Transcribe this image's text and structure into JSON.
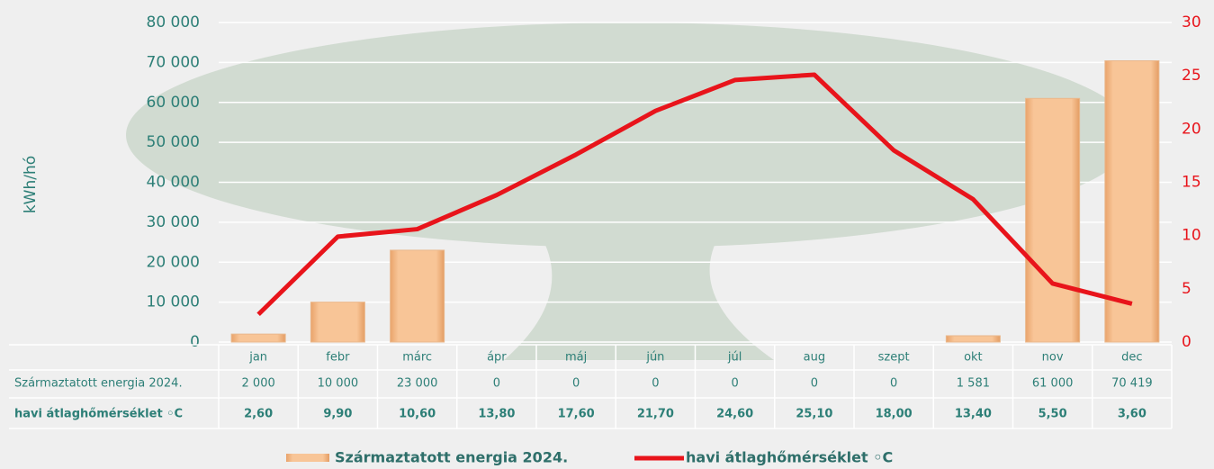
{
  "chart_data": {
    "type": "bar",
    "ylabel": "kWh/hó",
    "categories": [
      "jan",
      "febr",
      "márc",
      "ápr",
      "máj",
      "jún",
      "júl",
      "aug",
      "szept",
      "okt",
      "nov",
      "dec"
    ],
    "series": [
      {
        "name": "Származtatott energia 2024.",
        "type": "bar",
        "color": "#f8c597",
        "values": [
          2000,
          10000,
          23000,
          0,
          0,
          0,
          0,
          0,
          0,
          1581,
          61000,
          70419
        ],
        "value_labels": [
          "2 000",
          "10 000",
          "23 000",
          "0",
          "0",
          "0",
          "0",
          "0",
          "0",
          "1 581",
          "61 000",
          "70 419"
        ]
      },
      {
        "name": "havi átlaghőmérséklet ◦C",
        "type": "line",
        "axis": "y2",
        "color": "#e8141b",
        "values": [
          2.6,
          9.9,
          10.6,
          13.8,
          17.6,
          21.7,
          24.6,
          25.1,
          18.0,
          13.4,
          5.5,
          3.6
        ],
        "value_labels": [
          "2,60",
          "9,90",
          "10,60",
          "13,80",
          "17,60",
          "21,70",
          "24,60",
          "25,10",
          "18,00",
          "13,40",
          "5,50",
          "3,60"
        ]
      }
    ],
    "ylim": [
      0,
      80000
    ],
    "yticks": [
      {
        "value": 0,
        "label": "0"
      },
      {
        "value": 10000,
        "label": "10 000"
      },
      {
        "value": 20000,
        "label": "20 000"
      },
      {
        "value": 30000,
        "label": "30 000"
      },
      {
        "value": 40000,
        "label": "40 000"
      },
      {
        "value": 50000,
        "label": "50 000"
      },
      {
        "value": 60000,
        "label": "60 000"
      },
      {
        "value": 70000,
        "label": "70 000"
      },
      {
        "value": 80000,
        "label": "80 000"
      }
    ],
    "y2lim": [
      0,
      30
    ],
    "y2ticks": [
      0,
      5,
      10,
      15,
      20,
      25,
      30
    ],
    "grid": true
  }
}
